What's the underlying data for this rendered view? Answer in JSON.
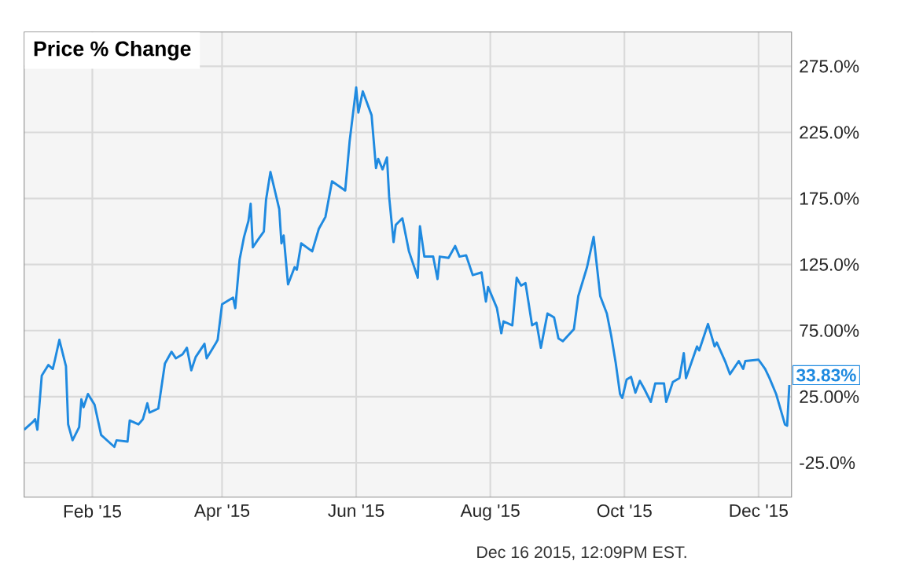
{
  "chart_data": {
    "type": "line",
    "title": "Price % Change",
    "x": [
      "2015-01-01",
      "2015-01-05",
      "2015-01-06",
      "2015-01-07",
      "2015-01-09",
      "2015-01-12",
      "2015-01-14",
      "2015-01-15",
      "2015-01-17",
      "2015-01-20",
      "2015-01-21",
      "2015-01-23",
      "2015-01-26",
      "2015-01-27",
      "2015-01-28",
      "2015-01-30",
      "2015-02-02",
      "2015-02-05",
      "2015-02-09",
      "2015-02-11",
      "2015-02-12",
      "2015-02-17",
      "2015-02-18",
      "2015-02-22",
      "2015-02-24",
      "2015-02-26",
      "2015-02-27",
      "2015-03-03",
      "2015-03-06",
      "2015-03-09",
      "2015-03-11",
      "2015-03-14",
      "2015-03-16",
      "2015-03-18",
      "2015-03-20",
      "2015-03-24",
      "2015-03-25",
      "2015-03-29",
      "2015-03-30",
      "2015-04-01",
      "2015-04-06",
      "2015-04-07",
      "2015-04-09",
      "2015-04-11",
      "2015-04-13",
      "2015-04-14",
      "2015-04-15",
      "2015-04-17",
      "2015-04-20",
      "2015-04-21",
      "2015-04-23",
      "2015-04-27",
      "2015-04-28",
      "2015-04-29",
      "2015-05-01",
      "2015-05-04",
      "2015-05-05",
      "2015-05-07",
      "2015-05-12",
      "2015-05-15",
      "2015-05-18",
      "2015-05-21",
      "2015-05-27",
      "2015-05-29",
      "2015-06-01",
      "2015-06-02",
      "2015-06-04",
      "2015-06-08",
      "2015-06-10",
      "2015-06-11",
      "2015-06-13",
      "2015-06-15",
      "2015-06-16",
      "2015-06-18",
      "2015-06-19",
      "2015-06-22",
      "2015-06-25",
      "2015-06-29",
      "2015-06-30",
      "2015-07-02",
      "2015-07-06",
      "2015-07-08",
      "2015-07-09",
      "2015-07-13",
      "2015-07-16",
      "2015-07-18",
      "2015-07-21",
      "2015-07-24",
      "2015-07-28",
      "2015-07-30",
      "2015-07-31",
      "2015-08-04",
      "2015-08-06",
      "2015-08-07",
      "2015-08-11",
      "2015-08-13",
      "2015-08-15",
      "2015-08-17",
      "2015-08-20",
      "2015-08-22",
      "2015-08-24",
      "2015-08-27",
      "2015-08-30",
      "2015-09-01",
      "2015-09-03",
      "2015-09-08",
      "2015-09-10",
      "2015-09-14",
      "2015-09-17",
      "2015-09-20",
      "2015-09-23",
      "2015-09-25",
      "2015-09-27",
      "2015-09-29",
      "2015-09-30",
      "2015-10-02",
      "2015-10-04",
      "2015-10-06",
      "2015-10-08",
      "2015-10-10",
      "2015-10-13",
      "2015-10-15",
      "2015-10-19",
      "2015-10-20",
      "2015-10-23",
      "2015-10-26",
      "2015-10-28",
      "2015-10-29",
      "2015-11-03",
      "2015-11-04",
      "2015-11-07",
      "2015-11-08",
      "2015-11-11",
      "2015-11-12",
      "2015-11-16",
      "2015-11-18",
      "2015-11-22",
      "2015-11-24",
      "2015-11-25",
      "2015-12-01",
      "2015-12-04",
      "2015-12-06",
      "2015-12-09",
      "2015-12-13",
      "2015-12-14",
      "2015-12-15"
    ],
    "values": [
      0,
      6,
      8,
      0,
      41,
      49,
      46,
      53,
      68,
      48,
      4,
      -8,
      2,
      23,
      17,
      27,
      19,
      -4,
      -10,
      -13,
      -8,
      -9,
      7,
      4,
      8,
      20,
      13,
      16,
      50,
      59,
      54,
      57,
      62,
      45,
      55,
      65,
      54,
      65,
      68,
      95,
      100,
      92,
      129,
      146,
      158,
      171,
      138,
      143,
      150,
      174,
      195,
      167,
      141,
      147,
      110,
      123,
      121,
      141,
      135,
      152,
      161,
      188,
      181,
      218,
      259,
      240,
      256,
      238,
      198,
      205,
      197,
      206,
      176,
      142,
      155,
      160,
      135,
      115,
      154,
      131,
      131,
      114,
      131,
      130,
      139,
      131,
      132,
      117,
      119,
      97,
      108,
      92,
      73,
      82,
      79,
      115,
      109,
      111,
      79,
      81,
      62,
      88,
      85,
      69,
      67,
      76,
      101,
      123,
      146,
      101,
      88,
      71,
      51,
      27,
      24,
      38,
      40,
      28,
      37,
      31,
      21,
      35,
      35,
      21,
      36,
      39,
      58,
      39,
      63,
      60,
      75,
      80,
      63,
      66,
      51,
      42,
      52,
      46,
      52,
      53,
      46,
      39,
      27,
      4,
      3,
      33.83
    ],
    "color": "#1f8ae0",
    "xlim": [
      "2015-01-01",
      "2015-12-16"
    ],
    "xticks": [
      {
        "value": "2015-02-01",
        "label": "Feb '15"
      },
      {
        "value": "2015-04-01",
        "label": "Apr '15"
      },
      {
        "value": "2015-06-01",
        "label": "Jun '15"
      },
      {
        "value": "2015-08-01",
        "label": "Aug '15"
      },
      {
        "value": "2015-10-01",
        "label": "Oct '15"
      },
      {
        "value": "2015-12-01",
        "label": "Dec '15"
      }
    ],
    "ylim": [
      -51,
      301
    ],
    "yticks": [
      {
        "value": -25,
        "label": "-25.0%"
      },
      {
        "value": 25,
        "label": "25.00%"
      },
      {
        "value": 75,
        "label": "75.00%"
      },
      {
        "value": 125,
        "label": "125.0%"
      },
      {
        "value": 175,
        "label": "175.0%"
      },
      {
        "value": 225,
        "label": "225.0%"
      },
      {
        "value": 275,
        "label": "275.0%"
      }
    ],
    "grid": true,
    "annotations": [
      {
        "text": "33.83%",
        "x": "2015-12-15",
        "y": 33.83
      },
      "Dec 16 2015, 12:09PM EST."
    ]
  }
}
